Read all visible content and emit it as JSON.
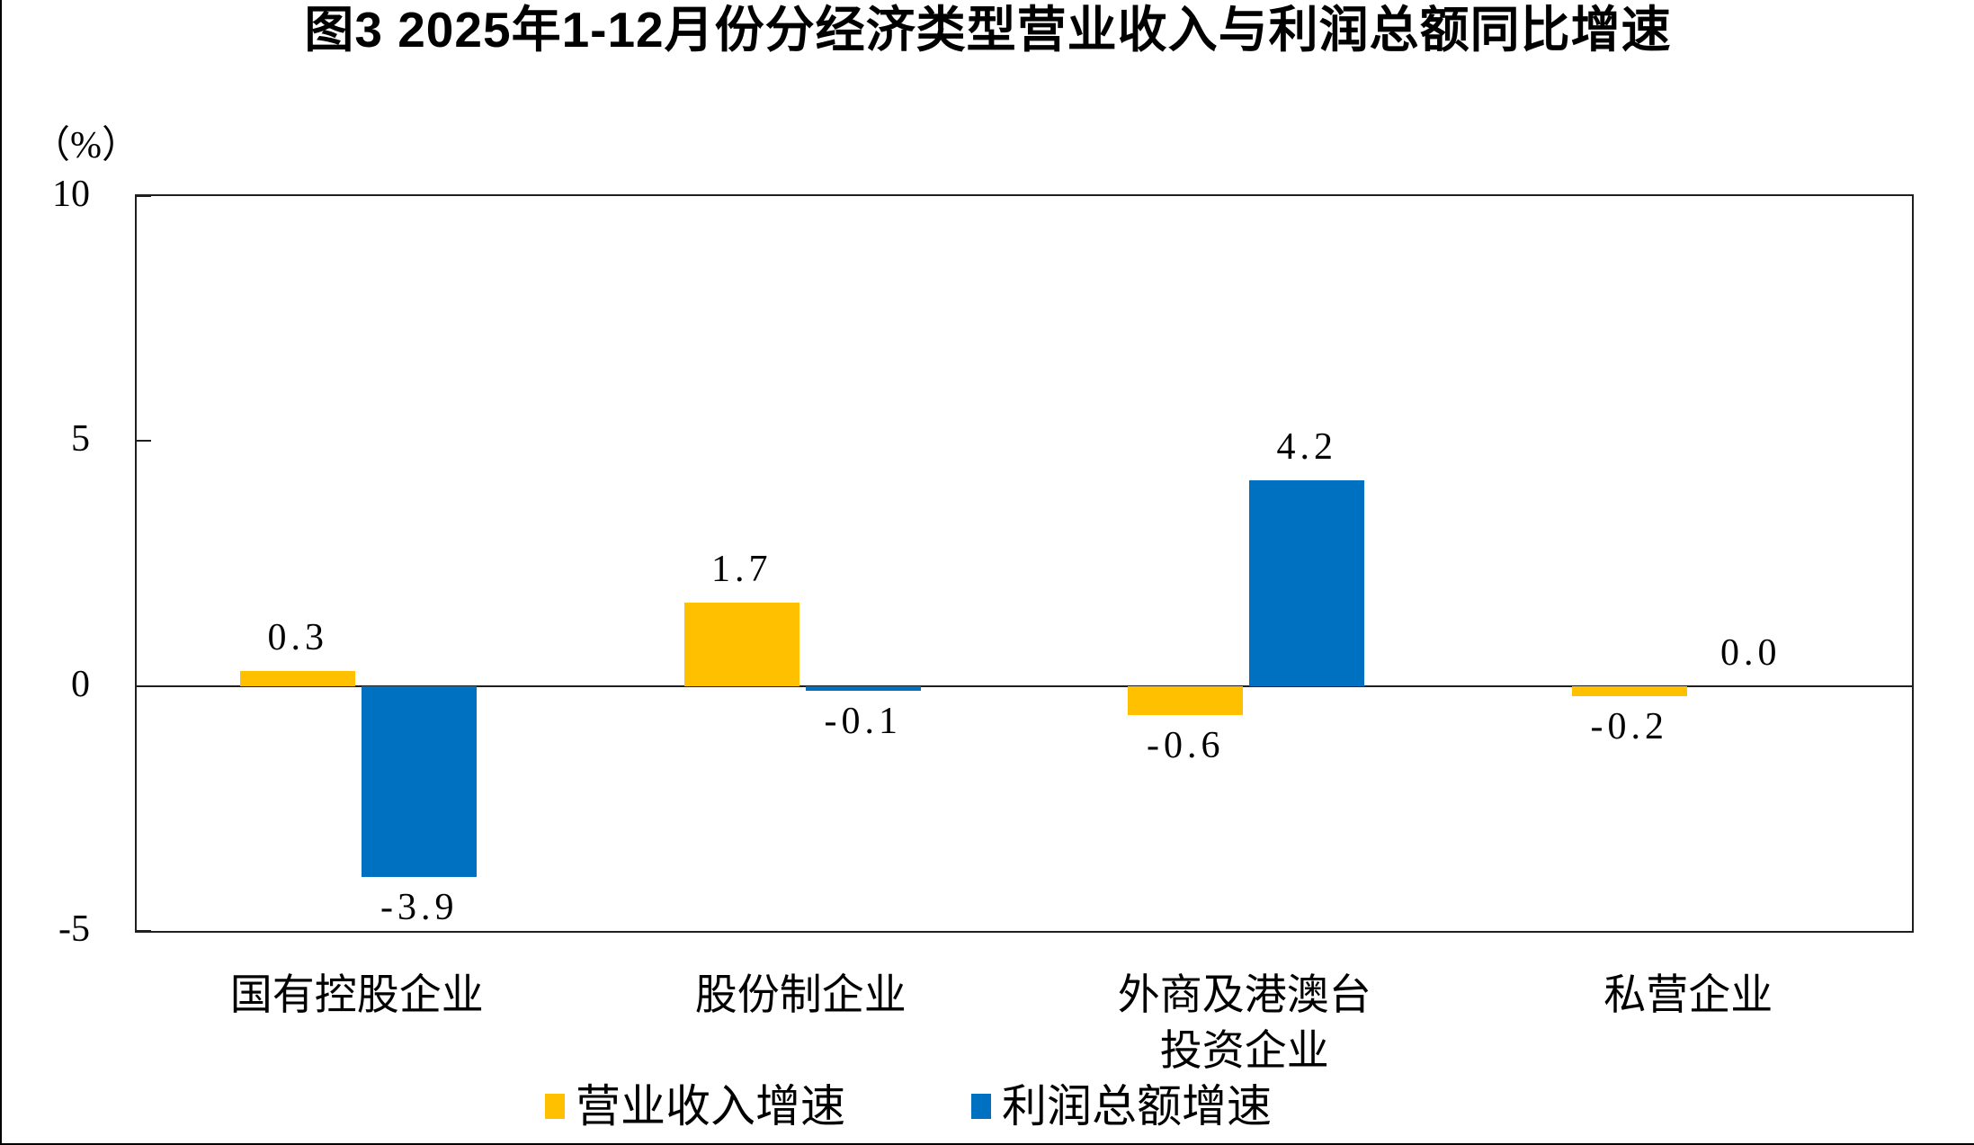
{
  "figure": {
    "title": "图3 2025年1-12月份分经济类型营业收入与利润总额同比增速",
    "unit_label": "（%）"
  },
  "chart_data": {
    "type": "bar",
    "categories": [
      "国有控股企业",
      "股份制企业",
      "外商及港澳台\n投资企业",
      "私营企业"
    ],
    "series": [
      {
        "name": "营业收入增速",
        "color": "#FFC000",
        "values": [
          0.3,
          1.7,
          -0.6,
          -0.2
        ]
      },
      {
        "name": "利润总额增速",
        "color": "#0070C0",
        "values": [
          -3.9,
          -0.1,
          4.2,
          0.0
        ]
      }
    ],
    "xlabel": "",
    "ylabel": "（%）",
    "ylim": [
      -5,
      10
    ],
    "yticks": [
      10,
      5,
      0,
      -5
    ],
    "grid": false,
    "legend_position": "bottom",
    "value_label_decimals": 1,
    "axis_color": "#1f1f1f"
  }
}
